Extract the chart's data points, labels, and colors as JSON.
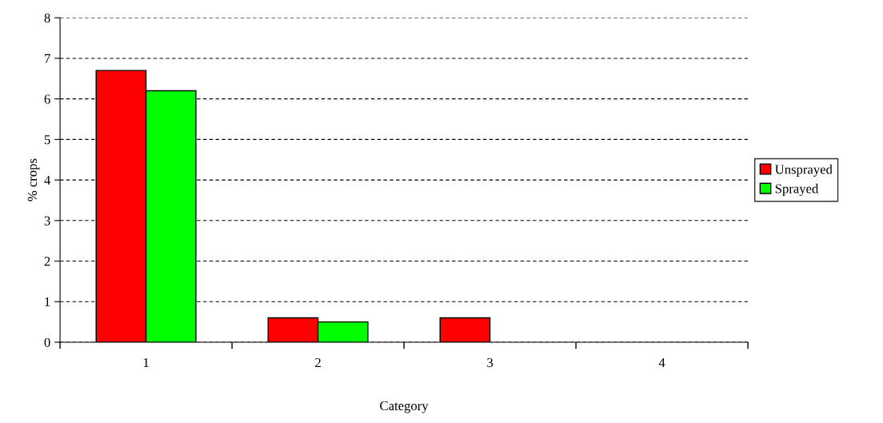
{
  "chart_data": {
    "type": "bar",
    "xlabel": "Category",
    "ylabel": "% crops",
    "categories": [
      "1",
      "2",
      "3",
      "4"
    ],
    "series": [
      {
        "name": "Unsprayed",
        "color": "#ff0000",
        "values": [
          6.7,
          0.6,
          0.6,
          null
        ]
      },
      {
        "name": "Sprayed",
        "color": "#00ff00",
        "values": [
          6.2,
          0.5,
          null,
          null
        ]
      }
    ],
    "ylim": [
      0,
      8
    ],
    "yticks": [
      0,
      1,
      2,
      3,
      4,
      5,
      6,
      7,
      8
    ],
    "grid": "y",
    "legend": "right"
  }
}
